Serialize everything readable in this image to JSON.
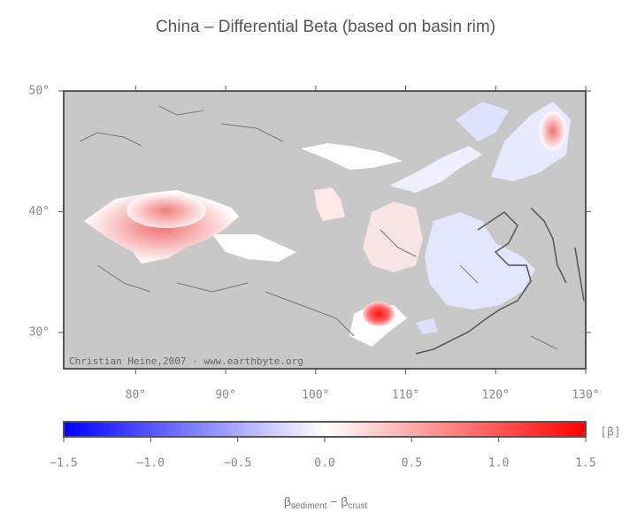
{
  "chart_data": {
    "type": "map",
    "title": "China – Differential Beta (based on basin rim)",
    "xlim": [
      72,
      130
    ],
    "ylim": [
      27,
      50
    ],
    "xticks": [
      {
        "value": 80,
        "label": "80°"
      },
      {
        "value": 90,
        "label": "90°"
      },
      {
        "value": 100,
        "label": "100°"
      },
      {
        "value": 110,
        "label": "110°"
      },
      {
        "value": 120,
        "label": "120°"
      },
      {
        "value": 130,
        "label": "130°"
      }
    ],
    "yticks": [
      {
        "value": 30,
        "label": "30°"
      },
      {
        "value": 40,
        "label": "40°"
      },
      {
        "value": 50,
        "label": "50°"
      }
    ],
    "credit": "Christian Heine,2007 - www.earthbyte.org",
    "colorbar": {
      "xlim": [
        -1.5,
        1.5
      ],
      "colors": [
        "#0000ff",
        "#ffffff",
        "#ff0000"
      ],
      "xticks": [
        {
          "value": -1.5,
          "label": "−1.5"
        },
        {
          "value": -1.0,
          "label": "−1.0"
        },
        {
          "value": -0.5,
          "label": "−0.5"
        },
        {
          "value": 0,
          "label": "0.0"
        },
        {
          "value": 0.5,
          "label": "0.5"
        },
        {
          "value": 1.0,
          "label": "1.0"
        },
        {
          "value": 1.5,
          "label": "1.5"
        }
      ],
      "unit": "[β]",
      "label_parts": [
        "β",
        "sediment",
        " − β",
        "crust"
      ]
    }
  }
}
